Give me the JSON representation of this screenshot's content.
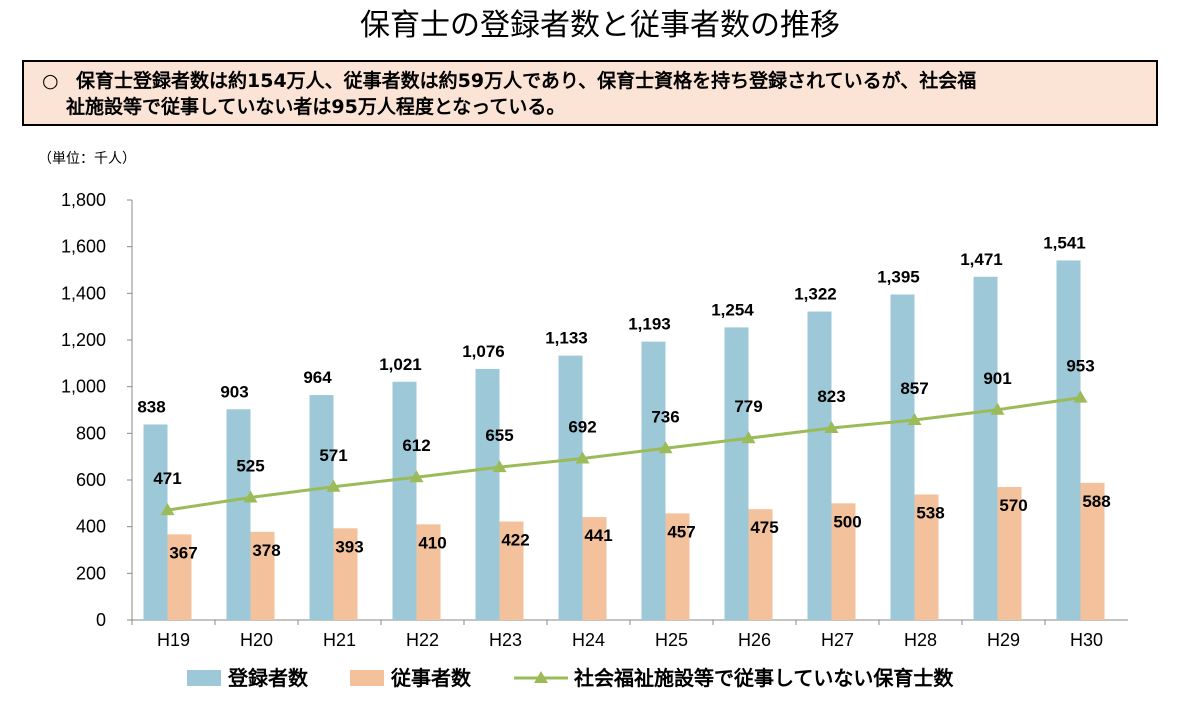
{
  "title": "保育士の登録者数と従事者数の推移",
  "note": {
    "bullet": "○",
    "line1": "保育士登録者数は約154万人、従事者数は約59万人であり、保育士資格を持ち登録されているが、社会福",
    "line2": "祉施設等で従事していない者は95万人程度となっている。"
  },
  "unit_label": "（単位：千人）",
  "chart_data": {
    "type": "bar",
    "categories": [
      "H19",
      "H20",
      "H21",
      "H22",
      "H23",
      "H24",
      "H25",
      "H26",
      "H27",
      "H28",
      "H29",
      "H30"
    ],
    "series": [
      {
        "name": "登録者数",
        "type": "bar",
        "color": "#9dc8d8",
        "values": [
          838,
          903,
          964,
          1021,
          1076,
          1133,
          1193,
          1254,
          1322,
          1395,
          1471,
          1541
        ]
      },
      {
        "name": "従事者数",
        "type": "bar",
        "color": "#f3c29c",
        "values": [
          367,
          378,
          393,
          410,
          422,
          441,
          457,
          475,
          500,
          538,
          570,
          588
        ]
      },
      {
        "name": "社会福祉施設等で従事していない保育士数",
        "type": "line",
        "color": "#9bbb59",
        "values": [
          471,
          525,
          571,
          612,
          655,
          692,
          736,
          779,
          823,
          857,
          901,
          953
        ]
      }
    ],
    "ylim": [
      0,
      1800
    ],
    "yticks": [
      0,
      200,
      400,
      600,
      800,
      1000,
      1200,
      1400,
      1600,
      1800
    ],
    "ytick_labels": [
      "0",
      "200",
      "400",
      "600",
      "800",
      "1,000",
      "1,200",
      "1,400",
      "1,600",
      "1,800"
    ],
    "data_labels": {
      "登録者数": [
        "838",
        "903",
        "964",
        "1,021",
        "1,076",
        "1,133",
        "1,193",
        "1,254",
        "1,322",
        "1,395",
        "1,471",
        "1,541"
      ],
      "従事者数": [
        "367",
        "378",
        "393",
        "410",
        "422",
        "441",
        "457",
        "475",
        "500",
        "538",
        "570",
        "588"
      ],
      "社会福祉施設等で従事していない保育士数": [
        "471",
        "525",
        "571",
        "612",
        "655",
        "692",
        "736",
        "779",
        "823",
        "857",
        "901",
        "953"
      ]
    },
    "grid": false,
    "legend_position": "bottom"
  }
}
